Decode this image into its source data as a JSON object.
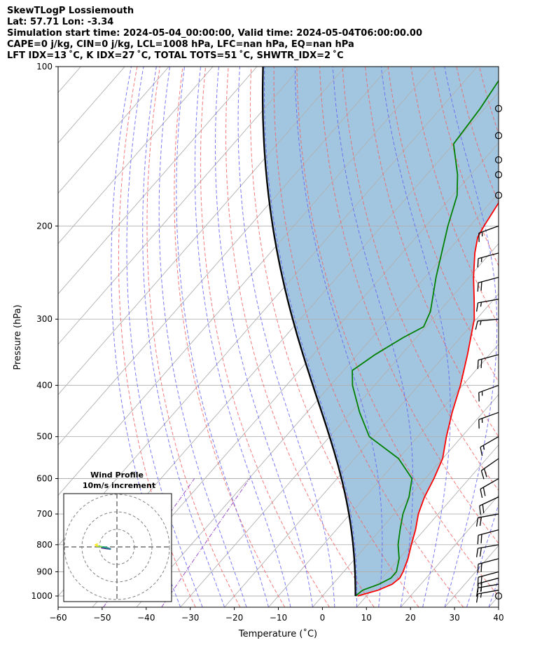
{
  "title_lines": [
    "SkewTLogP Lossiemouth",
    "Lat: 57.71   Lon: -3.34",
    "Simulation start time: 2024-05-04_00:00:00, Valid time: 2024-05-04T06:00:00.00",
    "CAPE=0 j/kg, CIN=0 j/kg, LCL=1008 hPa, LFC=nan hPa, EQ=nan hPa",
    "LFT IDX=13 ˚C, K IDX=27 ˚C, TOTAL TOTS=51 ˚C, SHWTR_IDX=2 ˚C"
  ],
  "chart_data": {
    "type": "skewt",
    "xlabel": "Temperature (˚C)",
    "ylabel": "Pressure (hPa)",
    "xlim": [
      -60,
      40
    ],
    "ylim": [
      1050,
      100
    ],
    "x_ticks": [
      -60,
      -50,
      -40,
      -30,
      -20,
      -10,
      0,
      10,
      20,
      30,
      40
    ],
    "y_ticks": [
      100,
      200,
      300,
      400,
      500,
      600,
      700,
      800,
      900,
      1000
    ],
    "pressure_scale": "log",
    "grid": true,
    "colors": {
      "temperature": "#ff0000",
      "dewpoint": "#008000",
      "parcel": "#000000",
      "fill": "#a3c6e0",
      "dry_adiabat": "#f06464",
      "moist_adiabat": "#6464f0",
      "isotherm": "#b0b0b0",
      "mixing_ratio": "#9b4fc9"
    },
    "temperature": [
      {
        "p": 1000,
        "t": 8.0
      },
      {
        "p": 975,
        "t": 11.5
      },
      {
        "p": 950,
        "t": 13.5
      },
      {
        "p": 925,
        "t": 14.0
      },
      {
        "p": 900,
        "t": 13.5
      },
      {
        "p": 850,
        "t": 12.0
      },
      {
        "p": 800,
        "t": 10.0
      },
      {
        "p": 750,
        "t": 8.0
      },
      {
        "p": 700,
        "t": 5.5
      },
      {
        "p": 650,
        "t": 3.5
      },
      {
        "p": 600,
        "t": 2.0
      },
      {
        "p": 550,
        "t": 0.0
      },
      {
        "p": 500,
        "t": -3.5
      },
      {
        "p": 450,
        "t": -7.0
      },
      {
        "p": 400,
        "t": -10.5
      },
      {
        "p": 350,
        "t": -15.0
      },
      {
        "p": 300,
        "t": -20.5
      },
      {
        "p": 275,
        "t": -24.5
      },
      {
        "p": 250,
        "t": -29.0
      },
      {
        "p": 225,
        "t": -33.5
      },
      {
        "p": 210,
        "t": -36.0
      },
      {
        "p": 200,
        "t": -36.8
      },
      {
        "p": 175,
        "t": -38.5
      },
      {
        "p": 150,
        "t": -41.0
      },
      {
        "p": 125,
        "t": -46.0
      },
      {
        "p": 100,
        "t": -52.0
      }
    ],
    "dewpoint": [
      {
        "p": 1000,
        "t": 7.5
      },
      {
        "p": 975,
        "t": 8.0
      },
      {
        "p": 950,
        "t": 10.5
      },
      {
        "p": 925,
        "t": 12.0
      },
      {
        "p": 900,
        "t": 12.0
      },
      {
        "p": 850,
        "t": 10.0
      },
      {
        "p": 800,
        "t": 7.0
      },
      {
        "p": 750,
        "t": 4.5
      },
      {
        "p": 700,
        "t": 2.0
      },
      {
        "p": 650,
        "t": 0.0
      },
      {
        "p": 600,
        "t": -3.0
      },
      {
        "p": 550,
        "t": -10.0
      },
      {
        "p": 500,
        "t": -21.0
      },
      {
        "p": 450,
        "t": -28.0
      },
      {
        "p": 400,
        "t": -35.0
      },
      {
        "p": 375,
        "t": -38.0
      },
      {
        "p": 350,
        "t": -36.0
      },
      {
        "p": 325,
        "t": -33.0
      },
      {
        "p": 310,
        "t": -30.5
      },
      {
        "p": 290,
        "t": -32.0
      },
      {
        "p": 250,
        "t": -37.5
      },
      {
        "p": 200,
        "t": -45.0
      },
      {
        "p": 175,
        "t": -49.0
      },
      {
        "p": 160,
        "t": -53.0
      },
      {
        "p": 140,
        "t": -60.0
      },
      {
        "p": 120,
        "t": -61.0
      },
      {
        "p": 100,
        "t": -63.0
      }
    ],
    "parcel_start": {
      "p": 1000,
      "t": 7.5
    },
    "dry_adiabats_theta_C": [
      -30,
      -20,
      -10,
      0,
      10,
      20,
      30,
      40,
      50,
      60,
      70,
      80,
      90,
      100,
      110,
      120,
      130,
      140,
      150,
      160,
      170,
      180
    ],
    "moist_adiabats_start_C": [
      -30,
      -25,
      -20,
      -15,
      -10,
      -5,
      0,
      5,
      10,
      15,
      20,
      25,
      30,
      35,
      40
    ],
    "mixing_ratios_gkg": [
      0.05,
      0.2
    ],
    "wind_barbs": [
      {
        "p": 1000,
        "speed_kt": 3,
        "dir_deg": 270
      },
      {
        "p": 975,
        "speed_kt": 17,
        "dir_deg": 260
      },
      {
        "p": 950,
        "speed_kt": 18,
        "dir_deg": 260
      },
      {
        "p": 925,
        "speed_kt": 20,
        "dir_deg": 255
      },
      {
        "p": 900,
        "speed_kt": 22,
        "dir_deg": 255
      },
      {
        "p": 850,
        "speed_kt": 20,
        "dir_deg": 255
      },
      {
        "p": 800,
        "speed_kt": 20,
        "dir_deg": 260
      },
      {
        "p": 750,
        "speed_kt": 22,
        "dir_deg": 255
      },
      {
        "p": 700,
        "speed_kt": 20,
        "dir_deg": 260
      },
      {
        "p": 650,
        "speed_kt": 22,
        "dir_deg": 245
      },
      {
        "p": 600,
        "speed_kt": 20,
        "dir_deg": 240
      },
      {
        "p": 550,
        "speed_kt": 20,
        "dir_deg": 235
      },
      {
        "p": 500,
        "speed_kt": 18,
        "dir_deg": 240
      },
      {
        "p": 450,
        "speed_kt": 15,
        "dir_deg": 250
      },
      {
        "p": 400,
        "speed_kt": 18,
        "dir_deg": 250
      },
      {
        "p": 350,
        "speed_kt": 20,
        "dir_deg": 255
      },
      {
        "p": 300,
        "speed_kt": 18,
        "dir_deg": 265
      },
      {
        "p": 275,
        "speed_kt": 18,
        "dir_deg": 260
      },
      {
        "p": 250,
        "speed_kt": 20,
        "dir_deg": 255
      },
      {
        "p": 225,
        "speed_kt": 18,
        "dir_deg": 255
      },
      {
        "p": 200,
        "speed_kt": 18,
        "dir_deg": 250
      },
      {
        "p": 175,
        "speed_kt": 0,
        "dir_deg": 0
      },
      {
        "p": 160,
        "speed_kt": 0,
        "dir_deg": 0
      },
      {
        "p": 150,
        "speed_kt": 3,
        "dir_deg": 180
      },
      {
        "p": 135,
        "speed_kt": 3,
        "dir_deg": 190
      },
      {
        "p": 120,
        "speed_kt": 2,
        "dir_deg": 180
      }
    ],
    "inset": {
      "title_line1": "Wind Profile",
      "title_line2": "10m/s increment",
      "rings": 3,
      "hodograph": [
        {
          "u": 0.0,
          "v": 0.0
        },
        {
          "u": 3.0,
          "v": -0.5
        },
        {
          "u": 5.0,
          "v": -0.8
        },
        {
          "u": 3.0,
          "v": 0.0
        },
        {
          "u": 0.0,
          "v": 0.5
        },
        {
          "u": -2.0,
          "v": 0.8
        },
        {
          "u": -3.0,
          "v": 1.0
        },
        {
          "u": -3.5,
          "v": 1.5
        },
        {
          "u": -2.5,
          "v": 2.0
        }
      ]
    }
  }
}
